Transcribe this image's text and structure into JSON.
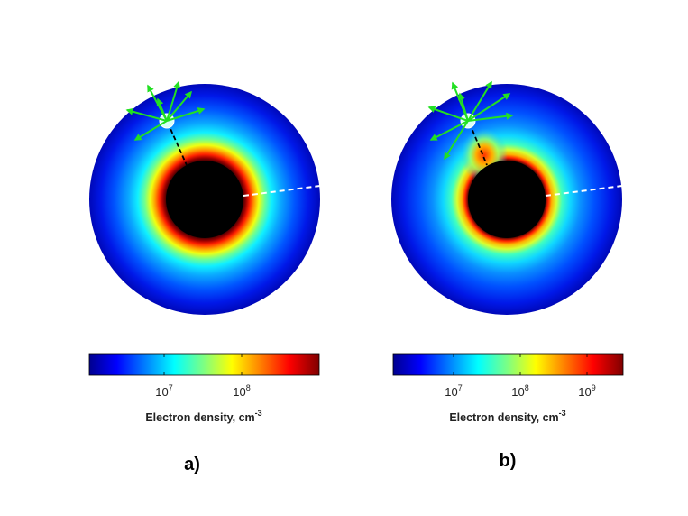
{
  "panels": [
    {
      "id": "a",
      "label": "a)",
      "colorbar_label": "Electron density, cm",
      "colorbar_label_exp": "-3",
      "ticks": [
        {
          "base": "10",
          "exp": "7"
        },
        {
          "base": "10",
          "exp": "8"
        }
      ]
    },
    {
      "id": "b",
      "label": "b)",
      "colorbar_label": "Electron density, cm",
      "colorbar_label_exp": "-3",
      "ticks": [
        {
          "base": "10",
          "exp": "7"
        },
        {
          "base": "10",
          "exp": "8"
        },
        {
          "base": "10",
          "exp": "9"
        }
      ]
    }
  ],
  "colors": {
    "core": "#000000",
    "arrows": "#22e022",
    "colormap": [
      "#00008f",
      "#0000ff",
      "#007fff",
      "#00ffff",
      "#7fff7f",
      "#ffff00",
      "#ff7f00",
      "#ff0000",
      "#7f0000"
    ]
  }
}
